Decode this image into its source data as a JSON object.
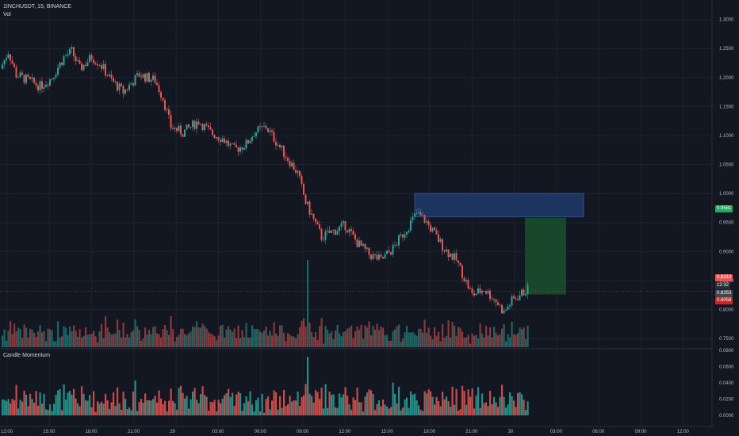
{
  "header": {
    "symbol": "1INCHUSDT, 15, BINANCE",
    "volume_label": "Vol",
    "indicator_label": "Candle Momentum"
  },
  "colors": {
    "background": "#131722",
    "up": "#26a69a",
    "down": "#ef5350",
    "grid": "#1e222d",
    "zone_blue": "#1f3a6b",
    "zone_green": "#1b4d2e",
    "zone_red": "#5c1a1d"
  },
  "badges": {
    "target": "0.9581",
    "last": "0.8310",
    "countdown": "12:32",
    "entry": "0.8253",
    "stop": "0.8058"
  },
  "chart_data": {
    "type": "candlestick",
    "price_axis": {
      "ticks": [
        "1.3000",
        "1.2500",
        "1.2000",
        "1.1500",
        "1.1000",
        "1.0500",
        "1.0000",
        "0.9500",
        "0.9000",
        "0.8500",
        "0.8000",
        "0.7500"
      ],
      "range": [
        0.735,
        1.32
      ]
    },
    "momentum_axis": {
      "ticks": [
        "0.0800",
        "0.0600",
        "0.0400",
        "0.0200",
        "0.0000"
      ],
      "range": [
        0.0,
        0.08
      ]
    },
    "time_axis": {
      "ticks": [
        "12:00",
        "15:00",
        "18:00",
        "21:00",
        "29",
        "03:00",
        "06:00",
        "09:00",
        "12:00",
        "15:00",
        "18:00",
        "21:00",
        "30",
        "03:00",
        "06:00",
        "09:00",
        "12:00"
      ]
    },
    "price_path": [
      [
        0,
        1.215
      ],
      [
        4,
        1.245
      ],
      [
        8,
        1.205
      ],
      [
        14,
        1.195
      ],
      [
        20,
        1.185
      ],
      [
        26,
        1.2
      ],
      [
        32,
        1.235
      ],
      [
        36,
        1.245
      ],
      [
        40,
        1.215
      ],
      [
        46,
        1.235
      ],
      [
        50,
        1.225
      ],
      [
        56,
        1.195
      ],
      [
        62,
        1.175
      ],
      [
        70,
        1.205
      ],
      [
        78,
        1.195
      ],
      [
        82,
        1.165
      ],
      [
        86,
        1.115
      ],
      [
        92,
        1.105
      ],
      [
        100,
        1.125
      ],
      [
        106,
        1.105
      ],
      [
        112,
        1.095
      ],
      [
        118,
        1.075
      ],
      [
        124,
        1.085
      ],
      [
        128,
        1.105
      ],
      [
        134,
        1.115
      ],
      [
        140,
        1.085
      ],
      [
        146,
        1.055
      ],
      [
        150,
        1.035
      ],
      [
        154,
        0.985
      ],
      [
        158,
        0.955
      ],
      [
        162,
        0.925
      ],
      [
        168,
        0.935
      ],
      [
        174,
        0.945
      ],
      [
        180,
        0.915
      ],
      [
        186,
        0.895
      ],
      [
        192,
        0.885
      ],
      [
        198,
        0.905
      ],
      [
        204,
        0.935
      ],
      [
        210,
        0.965
      ],
      [
        214,
        0.955
      ],
      [
        218,
        0.935
      ],
      [
        224,
        0.905
      ],
      [
        230,
        0.885
      ],
      [
        234,
        0.855
      ],
      [
        238,
        0.825
      ],
      [
        244,
        0.835
      ],
      [
        250,
        0.815
      ],
      [
        254,
        0.795
      ],
      [
        258,
        0.815
      ],
      [
        262,
        0.825
      ],
      [
        266,
        0.835
      ]
    ],
    "zones": {
      "supply": [
        0.96,
        1.0
      ],
      "target": [
        0.826,
        0.9581
      ],
      "stop": [
        0.8058,
        0.8253
      ]
    },
    "volume_max_ratio": 1.0
  }
}
